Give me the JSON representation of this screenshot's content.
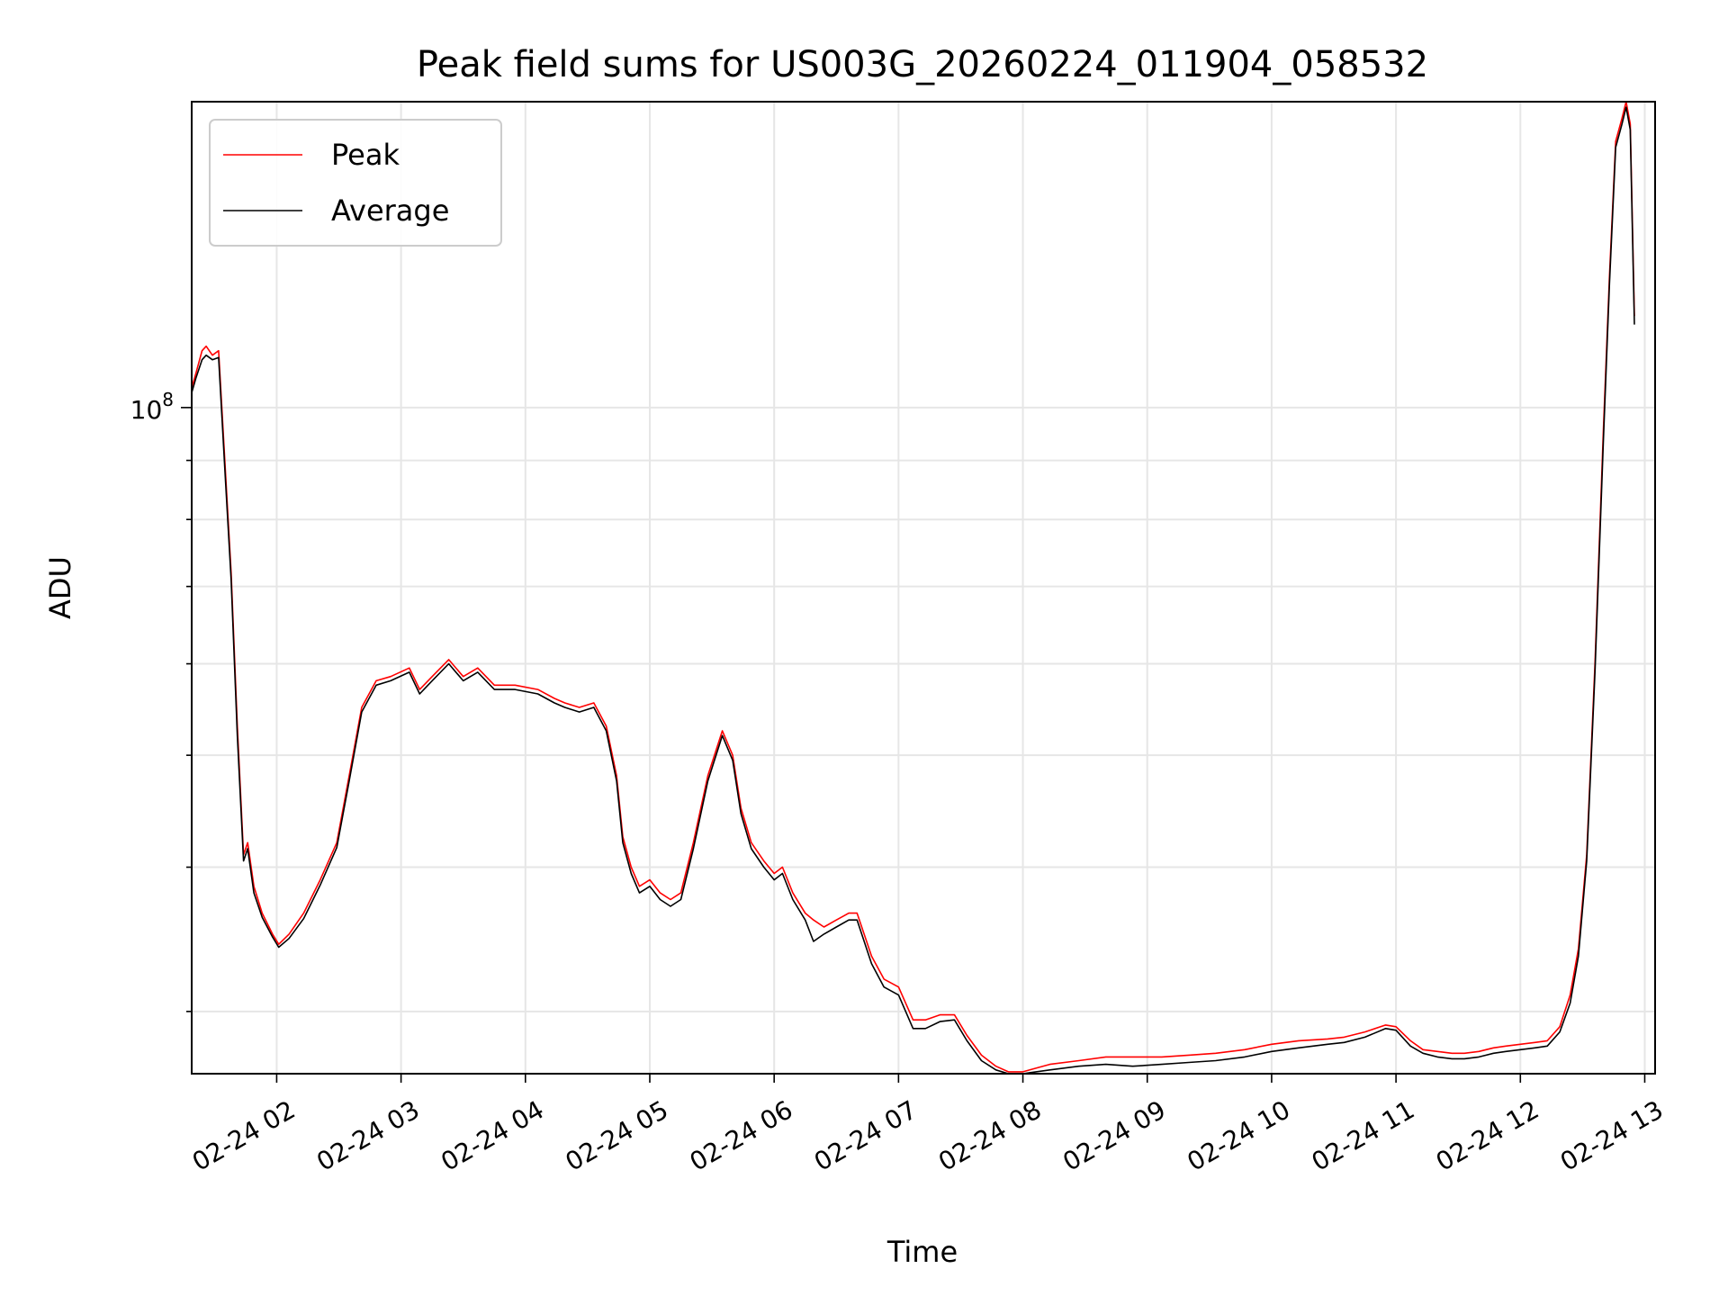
{
  "chart_data": {
    "type": "line",
    "title": "Peak field sums for US003G_20260224_011904_058532",
    "xlabel": "Time",
    "ylabel": "ADU",
    "yscale": "log",
    "grid": true,
    "legend_position": "upper-left",
    "x_range": [
      "2026-02-24 01:19",
      "2026-02-24 13:05"
    ],
    "y_range": [
      26500000,
      184000000
    ],
    "x_ticks": [
      {
        "label": "02-24 02",
        "time": "2026-02-24 02:00"
      },
      {
        "label": "02-24 03",
        "time": "2026-02-24 03:00"
      },
      {
        "label": "02-24 04",
        "time": "2026-02-24 04:00"
      },
      {
        "label": "02-24 05",
        "time": "2026-02-24 05:00"
      },
      {
        "label": "02-24 06",
        "time": "2026-02-24 06:00"
      },
      {
        "label": "02-24 07",
        "time": "2026-02-24 07:00"
      },
      {
        "label": "02-24 08",
        "time": "2026-02-24 08:00"
      },
      {
        "label": "02-24 09",
        "time": "2026-02-24 09:00"
      },
      {
        "label": "02-24 10",
        "time": "2026-02-24 10:00"
      },
      {
        "label": "02-24 11",
        "time": "2026-02-24 11:00"
      },
      {
        "label": "02-24 12",
        "time": "2026-02-24 12:00"
      },
      {
        "label": "02-24 13",
        "time": "2026-02-24 13:00"
      }
    ],
    "y_major_ticks": [
      {
        "value": 100000000,
        "base": "10",
        "exponent": "8"
      }
    ],
    "y_minor_tick_values": [
      30000000,
      40000000,
      50000000,
      60000000,
      70000000,
      80000000,
      90000000
    ],
    "series": [
      {
        "name": "Peak",
        "color": "#ff0000",
        "points": [
          [
            "2026-02-24 01:19",
            104000000
          ],
          [
            "2026-02-24 01:21",
            107000000
          ],
          [
            "2026-02-24 01:24",
            112000000
          ],
          [
            "2026-02-24 01:26",
            113000000
          ],
          [
            "2026-02-24 01:29",
            111000000
          ],
          [
            "2026-02-24 01:32",
            112000000
          ],
          [
            "2026-02-24 01:35",
            90000000
          ],
          [
            "2026-02-24 01:38",
            72000000
          ],
          [
            "2026-02-24 01:41",
            53000000
          ],
          [
            "2026-02-24 01:44",
            41000000
          ],
          [
            "2026-02-24 01:46",
            42000000
          ],
          [
            "2026-02-24 01:49",
            38500000
          ],
          [
            "2026-02-24 01:53",
            36500000
          ],
          [
            "2026-02-24 01:58",
            35000000
          ],
          [
            "2026-02-24 02:01",
            34300000
          ],
          [
            "2026-02-24 02:06",
            35000000
          ],
          [
            "2026-02-24 02:13",
            36500000
          ],
          [
            "2026-02-24 02:21",
            39000000
          ],
          [
            "2026-02-24 02:29",
            42000000
          ],
          [
            "2026-02-24 02:35",
            48000000
          ],
          [
            "2026-02-24 02:41",
            55000000
          ],
          [
            "2026-02-24 02:48",
            58000000
          ],
          [
            "2026-02-24 02:55",
            58500000
          ],
          [
            "2026-02-24 03:04",
            59500000
          ],
          [
            "2026-02-24 03:09",
            57000000
          ],
          [
            "2026-02-24 03:15",
            58500000
          ],
          [
            "2026-02-24 03:23",
            60500000
          ],
          [
            "2026-02-24 03:30",
            58500000
          ],
          [
            "2026-02-24 03:37",
            59500000
          ],
          [
            "2026-02-24 03:45",
            57500000
          ],
          [
            "2026-02-24 03:55",
            57500000
          ],
          [
            "2026-02-24 04:06",
            57000000
          ],
          [
            "2026-02-24 04:14",
            56000000
          ],
          [
            "2026-02-24 04:19",
            55500000
          ],
          [
            "2026-02-24 04:26",
            55000000
          ],
          [
            "2026-02-24 04:33",
            55500000
          ],
          [
            "2026-02-24 04:39",
            53000000
          ],
          [
            "2026-02-24 04:44",
            48000000
          ],
          [
            "2026-02-24 04:47",
            42500000
          ],
          [
            "2026-02-24 04:51",
            40000000
          ],
          [
            "2026-02-24 04:55",
            38500000
          ],
          [
            "2026-02-24 05:00",
            39000000
          ],
          [
            "2026-02-24 05:05",
            38000000
          ],
          [
            "2026-02-24 05:10",
            37500000
          ],
          [
            "2026-02-24 05:15",
            38000000
          ],
          [
            "2026-02-24 05:21",
            42000000
          ],
          [
            "2026-02-24 05:28",
            48000000
          ],
          [
            "2026-02-24 05:35",
            52500000
          ],
          [
            "2026-02-24 05:40",
            50000000
          ],
          [
            "2026-02-24 05:44",
            45000000
          ],
          [
            "2026-02-24 05:49",
            42000000
          ],
          [
            "2026-02-24 05:55",
            40500000
          ],
          [
            "2026-02-24 06:00",
            39500000
          ],
          [
            "2026-02-24 06:04",
            40000000
          ],
          [
            "2026-02-24 06:09",
            38000000
          ],
          [
            "2026-02-24 06:15",
            36500000
          ],
          [
            "2026-02-24 06:19",
            36000000
          ],
          [
            "2026-02-24 06:24",
            35500000
          ],
          [
            "2026-02-24 06:30",
            36000000
          ],
          [
            "2026-02-24 06:36",
            36500000
          ],
          [
            "2026-02-24 06:40",
            36500000
          ],
          [
            "2026-02-24 06:47",
            33500000
          ],
          [
            "2026-02-24 06:53",
            32000000
          ],
          [
            "2026-02-24 07:00",
            31500000
          ],
          [
            "2026-02-24 07:07",
            29500000
          ],
          [
            "2026-02-24 07:13",
            29500000
          ],
          [
            "2026-02-24 07:20",
            29800000
          ],
          [
            "2026-02-24 07:27",
            29800000
          ],
          [
            "2026-02-24 07:33",
            28600000
          ],
          [
            "2026-02-24 07:40",
            27500000
          ],
          [
            "2026-02-24 07:47",
            26900000
          ],
          [
            "2026-02-24 07:53",
            26600000
          ],
          [
            "2026-02-24 08:00",
            26600000
          ],
          [
            "2026-02-24 08:13",
            27000000
          ],
          [
            "2026-02-24 08:27",
            27200000
          ],
          [
            "2026-02-24 08:40",
            27400000
          ],
          [
            "2026-02-24 08:53",
            27400000
          ],
          [
            "2026-02-24 09:07",
            27400000
          ],
          [
            "2026-02-24 09:20",
            27500000
          ],
          [
            "2026-02-24 09:33",
            27600000
          ],
          [
            "2026-02-24 09:47",
            27800000
          ],
          [
            "2026-02-24 10:00",
            28100000
          ],
          [
            "2026-02-24 10:13",
            28300000
          ],
          [
            "2026-02-24 10:27",
            28400000
          ],
          [
            "2026-02-24 10:35",
            28500000
          ],
          [
            "2026-02-24 10:45",
            28800000
          ],
          [
            "2026-02-24 10:55",
            29200000
          ],
          [
            "2026-02-24 11:00",
            29100000
          ],
          [
            "2026-02-24 11:07",
            28300000
          ],
          [
            "2026-02-24 11:13",
            27800000
          ],
          [
            "2026-02-24 11:20",
            27700000
          ],
          [
            "2026-02-24 11:27",
            27600000
          ],
          [
            "2026-02-24 11:33",
            27600000
          ],
          [
            "2026-02-24 11:40",
            27700000
          ],
          [
            "2026-02-24 11:47",
            27900000
          ],
          [
            "2026-02-24 11:53",
            28000000
          ],
          [
            "2026-02-24 12:00",
            28100000
          ],
          [
            "2026-02-24 12:07",
            28200000
          ],
          [
            "2026-02-24 12:13",
            28300000
          ],
          [
            "2026-02-24 12:19",
            29100000
          ],
          [
            "2026-02-24 12:24",
            31000000
          ],
          [
            "2026-02-24 12:28",
            34000000
          ],
          [
            "2026-02-24 12:32",
            41000000
          ],
          [
            "2026-02-24 12:36",
            60000000
          ],
          [
            "2026-02-24 12:40",
            95000000
          ],
          [
            "2026-02-24 12:43",
            130000000
          ],
          [
            "2026-02-24 12:46",
            170000000
          ],
          [
            "2026-02-24 12:49",
            178000000
          ],
          [
            "2026-02-24 12:51",
            184000000
          ],
          [
            "2026-02-24 12:53",
            176000000
          ],
          [
            "2026-02-24 12:55",
            120000000
          ]
        ]
      },
      {
        "name": "Average",
        "color": "#000000",
        "points": [
          [
            "2026-02-24 01:19",
            103000000
          ],
          [
            "2026-02-24 01:21",
            106000000
          ],
          [
            "2026-02-24 01:24",
            110000000
          ],
          [
            "2026-02-24 01:26",
            111000000
          ],
          [
            "2026-02-24 01:29",
            110000000
          ],
          [
            "2026-02-24 01:32",
            110500000
          ],
          [
            "2026-02-24 01:35",
            88500000
          ],
          [
            "2026-02-24 01:38",
            71000000
          ],
          [
            "2026-02-24 01:41",
            52000000
          ],
          [
            "2026-02-24 01:44",
            40500000
          ],
          [
            "2026-02-24 01:46",
            41500000
          ],
          [
            "2026-02-24 01:49",
            38000000
          ],
          [
            "2026-02-24 01:53",
            36200000
          ],
          [
            "2026-02-24 01:58",
            34800000
          ],
          [
            "2026-02-24 02:01",
            34100000
          ],
          [
            "2026-02-24 02:06",
            34700000
          ],
          [
            "2026-02-24 02:13",
            36100000
          ],
          [
            "2026-02-24 02:21",
            38600000
          ],
          [
            "2026-02-24 02:29",
            41600000
          ],
          [
            "2026-02-24 02:35",
            47500000
          ],
          [
            "2026-02-24 02:41",
            54500000
          ],
          [
            "2026-02-24 02:48",
            57500000
          ],
          [
            "2026-02-24 02:55",
            58000000
          ],
          [
            "2026-02-24 03:04",
            59000000
          ],
          [
            "2026-02-24 03:09",
            56500000
          ],
          [
            "2026-02-24 03:15",
            58000000
          ],
          [
            "2026-02-24 03:23",
            60000000
          ],
          [
            "2026-02-24 03:30",
            58000000
          ],
          [
            "2026-02-24 03:37",
            59000000
          ],
          [
            "2026-02-24 03:45",
            57000000
          ],
          [
            "2026-02-24 03:55",
            57000000
          ],
          [
            "2026-02-24 04:06",
            56500000
          ],
          [
            "2026-02-24 04:14",
            55500000
          ],
          [
            "2026-02-24 04:19",
            55000000
          ],
          [
            "2026-02-24 04:26",
            54500000
          ],
          [
            "2026-02-24 04:33",
            55000000
          ],
          [
            "2026-02-24 04:39",
            52500000
          ],
          [
            "2026-02-24 04:44",
            47500000
          ],
          [
            "2026-02-24 04:47",
            42000000
          ],
          [
            "2026-02-24 04:51",
            39500000
          ],
          [
            "2026-02-24 04:55",
            38000000
          ],
          [
            "2026-02-24 05:00",
            38500000
          ],
          [
            "2026-02-24 05:05",
            37500000
          ],
          [
            "2026-02-24 05:10",
            37000000
          ],
          [
            "2026-02-24 05:15",
            37500000
          ],
          [
            "2026-02-24 05:21",
            41500000
          ],
          [
            "2026-02-24 05:28",
            47500000
          ],
          [
            "2026-02-24 05:35",
            52000000
          ],
          [
            "2026-02-24 05:40",
            49500000
          ],
          [
            "2026-02-24 05:44",
            44500000
          ],
          [
            "2026-02-24 05:49",
            41500000
          ],
          [
            "2026-02-24 05:55",
            40000000
          ],
          [
            "2026-02-24 06:00",
            39000000
          ],
          [
            "2026-02-24 06:04",
            39500000
          ],
          [
            "2026-02-24 06:09",
            37500000
          ],
          [
            "2026-02-24 06:15",
            36000000
          ],
          [
            "2026-02-24 06:19",
            34500000
          ],
          [
            "2026-02-24 06:24",
            35000000
          ],
          [
            "2026-02-24 06:30",
            35500000
          ],
          [
            "2026-02-24 06:36",
            36000000
          ],
          [
            "2026-02-24 06:40",
            36000000
          ],
          [
            "2026-02-24 06:47",
            33000000
          ],
          [
            "2026-02-24 06:53",
            31500000
          ],
          [
            "2026-02-24 07:00",
            31000000
          ],
          [
            "2026-02-24 07:07",
            29000000
          ],
          [
            "2026-02-24 07:13",
            29000000
          ],
          [
            "2026-02-24 07:20",
            29400000
          ],
          [
            "2026-02-24 07:27",
            29500000
          ],
          [
            "2026-02-24 07:33",
            28300000
          ],
          [
            "2026-02-24 07:40",
            27200000
          ],
          [
            "2026-02-24 07:47",
            26700000
          ],
          [
            "2026-02-24 07:53",
            26500000
          ],
          [
            "2026-02-24 08:00",
            26500000
          ],
          [
            "2026-02-24 08:13",
            26700000
          ],
          [
            "2026-02-24 08:27",
            26900000
          ],
          [
            "2026-02-24 08:40",
            27000000
          ],
          [
            "2026-02-24 08:53",
            26900000
          ],
          [
            "2026-02-24 09:07",
            27000000
          ],
          [
            "2026-02-24 09:20",
            27100000
          ],
          [
            "2026-02-24 09:33",
            27200000
          ],
          [
            "2026-02-24 09:47",
            27400000
          ],
          [
            "2026-02-24 10:00",
            27700000
          ],
          [
            "2026-02-24 10:13",
            27900000
          ],
          [
            "2026-02-24 10:27",
            28100000
          ],
          [
            "2026-02-24 10:35",
            28200000
          ],
          [
            "2026-02-24 10:45",
            28500000
          ],
          [
            "2026-02-24 10:55",
            29000000
          ],
          [
            "2026-02-24 11:00",
            28900000
          ],
          [
            "2026-02-24 11:07",
            28000000
          ],
          [
            "2026-02-24 11:13",
            27600000
          ],
          [
            "2026-02-24 11:20",
            27400000
          ],
          [
            "2026-02-24 11:27",
            27300000
          ],
          [
            "2026-02-24 11:33",
            27300000
          ],
          [
            "2026-02-24 11:40",
            27400000
          ],
          [
            "2026-02-24 11:47",
            27600000
          ],
          [
            "2026-02-24 11:53",
            27700000
          ],
          [
            "2026-02-24 12:00",
            27800000
          ],
          [
            "2026-02-24 12:07",
            27900000
          ],
          [
            "2026-02-24 12:13",
            28000000
          ],
          [
            "2026-02-24 12:19",
            28800000
          ],
          [
            "2026-02-24 12:24",
            30500000
          ],
          [
            "2026-02-24 12:28",
            33500000
          ],
          [
            "2026-02-24 12:32",
            40500000
          ],
          [
            "2026-02-24 12:36",
            59000000
          ],
          [
            "2026-02-24 12:40",
            93000000
          ],
          [
            "2026-02-24 12:43",
            128000000
          ],
          [
            "2026-02-24 12:46",
            168000000
          ],
          [
            "2026-02-24 12:49",
            176000000
          ],
          [
            "2026-02-24 12:51",
            182000000
          ],
          [
            "2026-02-24 12:53",
            174000000
          ],
          [
            "2026-02-24 12:55",
            118000000
          ]
        ]
      }
    ]
  }
}
